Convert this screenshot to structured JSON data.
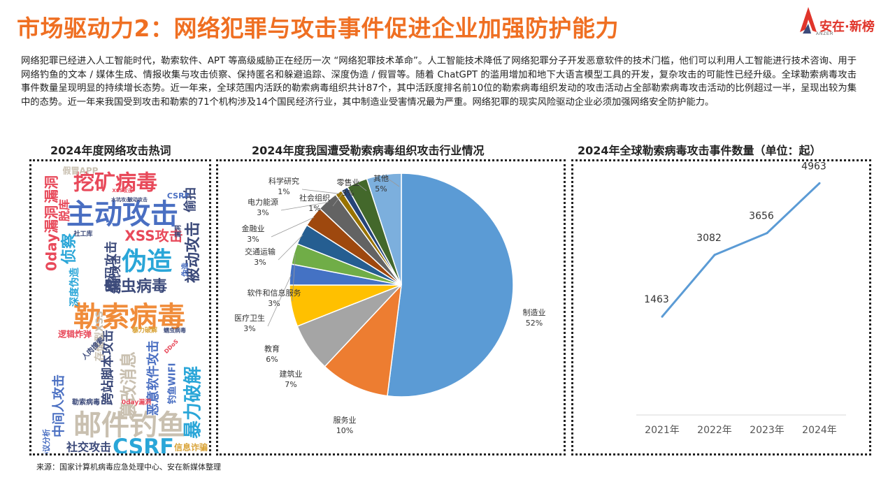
{
  "header": {
    "title": "市场驱动力2：网络犯罪与攻击事件促进企业加强防护能力",
    "logo_text": "安在·新榜",
    "logo_sub": "ANZER"
  },
  "intro": "网络犯罪已经进入人工智能时代，勒索软件、APT 等高级威胁正在经历一次 “网络犯罪技术革命”。人工智能技术降低了网络犯罪分子开发恶意软件的技术门槛，他们可以利用人工智能进行技术咨询、用于网络钓鱼的文本 / 媒体生成、情报收集与攻击侦察、保持匿名和躲避追踪、深度伪造 / 假冒等。随着 ChatGPT 的滥用增加和地下大语言模型工具的开发，复杂攻击的可能性已经升级。全球勒索病毒攻击事件数量呈现明显的持续增长态势。近一年来，全球范围内活跃的勒索病毒组织共计87个，其中活跃度排名前10位的勒索病毒组织发动的攻击活动占全部勒索病毒攻击活动的比例超过一半，呈现出较为集中的态势。近一年来我国受到攻击和勒索的71个机构涉及14个国民经济行业，其中制造业受害情况最为严重。网络犯罪的现实风险驱动企业必须加强网络安全防护能力。",
  "panels": {
    "wordcloud_title": "2024年度网络攻击热词",
    "pie_title": "2024年度我国遭受勒索病毒组织攻击行业情况",
    "line_title": "2024年全球勒索病毒攻击事件数量（单位：起）"
  },
  "wordcloud": [
    {
      "text": "挖矿病毒",
      "color": "#e8495a",
      "size": 30,
      "rot": 0
    },
    {
      "text": "主动攻击",
      "color": "#4a6fc2",
      "size": 40,
      "rot": 0
    },
    {
      "text": "XSS攻击",
      "color": "#e8495a",
      "size": 20,
      "rot": 0
    },
    {
      "text": "伪造",
      "color": "#2aa6d8",
      "size": 36,
      "rot": 0
    },
    {
      "text": "蠕虫病毒",
      "color": "#3c4a7a",
      "size": 22,
      "rot": 0
    },
    {
      "text": "勒索病毒",
      "color": "#f08c3a",
      "size": 40,
      "rot": 0
    },
    {
      "text": "邮件钓鱼",
      "color": "#c9c0b0",
      "size": 40,
      "rot": 0
    },
    {
      "text": "CSRF",
      "color": "#2aa6d8",
      "size": 30,
      "rot": 0
    },
    {
      "text": "社交攻击",
      "color": "#3c4a7a",
      "size": 16,
      "rot": 0
    },
    {
      "text": "信息诈骗",
      "color": "#d9a43a",
      "size": 12,
      "rot": 0
    },
    {
      "text": "暴力破解",
      "color": "#2aa6d8",
      "size": 26,
      "rot": -90
    },
    {
      "text": "被动攻击",
      "color": "#3c4a7a",
      "size": 22,
      "rot": -90
    },
    {
      "text": "偷拍",
      "color": "#3c4a7a",
      "size": 18,
      "rot": -90
    },
    {
      "text": "0day漏洞",
      "color": "#e8495a",
      "size": 20,
      "rot": -90
    },
    {
      "text": "中间人攻击",
      "color": "#4a6fc2",
      "size": 18,
      "rot": -90
    },
    {
      "text": "篡改消息",
      "color": "#c9c0b0",
      "size": 24,
      "rot": -90
    },
    {
      "text": "跨站脚本攻击",
      "color": "#3c4a7a",
      "size": 18,
      "rot": -90
    },
    {
      "text": "恶意软件攻击",
      "color": "#4a6fc2",
      "size": 18,
      "rot": -90
    },
    {
      "text": "密码攻击",
      "color": "#3c4a7a",
      "size": 18,
      "rot": -90
    },
    {
      "text": "侦察",
      "color": "#2aa6d8",
      "size": 22,
      "rot": -90
    },
    {
      "text": "水坑攻击",
      "color": "#3c4a7a",
      "size": 14,
      "rot": -90
    },
    {
      "text": "深度伪造",
      "color": "#2aa6d8",
      "size": 14,
      "rot": -90
    },
    {
      "text": "漏洞",
      "color": "#e8495a",
      "size": 20,
      "rot": -90
    },
    {
      "text": "脱库",
      "color": "#e8495a",
      "size": 16,
      "rot": -90
    },
    {
      "text": "存储型XSS",
      "color": "#c9c0b0",
      "size": 14,
      "rot": -90
    },
    {
      "text": "逻辑炸弹",
      "color": "#e8495a",
      "size": 12,
      "rot": 0
    },
    {
      "text": "假冒APP",
      "color": "#c9c0b0",
      "size": 12,
      "rot": 0
    },
    {
      "text": "钓鱼WIFI",
      "color": "#4a6fc2",
      "size": 13,
      "rot": -90
    },
    {
      "text": "协议分析",
      "color": "#4a6fc2",
      "size": 11,
      "rot": -90
    },
    {
      "text": "勒索病毒",
      "color": "#3c4a7a",
      "size": 10,
      "rot": 0
    },
    {
      "text": "0day漏洞",
      "color": "#e8495a",
      "size": 9,
      "rot": 0
    },
    {
      "text": "暴力破解",
      "color": "#d9a43a",
      "size": 9,
      "rot": 0
    },
    {
      "text": "蠕虫病毒",
      "color": "#3c4a7a",
      "size": 8,
      "rot": 0
    },
    {
      "text": "社工库",
      "color": "#3c4a7a",
      "size": 9,
      "rot": 0
    },
    {
      "text": "CSRF",
      "color": "#4a6fc2",
      "size": 11,
      "rot": 0
    },
    {
      "text": "伪造",
      "color": "#4a6fc2",
      "size": 10,
      "rot": -90
    },
    {
      "text": "XSS攻击",
      "color": "#e8495a",
      "size": 7,
      "rot": 0
    },
    {
      "text": "水坑攻击",
      "color": "#3c4a7a",
      "size": 7,
      "rot": 0
    },
    {
      "text": "漏洞",
      "color": "#3c4a7a",
      "size": 9,
      "rot": -90
    },
    {
      "text": "人肉搜索",
      "color": "#3c4a7a",
      "size": 10,
      "rot": -45
    },
    {
      "text": "被动攻击",
      "color": "#3c4a7a",
      "size": 7,
      "rot": 0
    },
    {
      "text": "DDoS",
      "color": "#e8495a",
      "size": 8,
      "rot": -45
    }
  ],
  "chart_data": [
    {
      "type": "pie",
      "title": "2024年度我国遭受勒索病毒组织攻击行业情况",
      "slices": [
        {
          "label": "制造业",
          "value": 52,
          "pct_label": "52%",
          "color": "#5b9bd5"
        },
        {
          "label": "服务业",
          "value": 10,
          "pct_label": "10%",
          "color": "#ed7d31"
        },
        {
          "label": "建筑业",
          "value": 7,
          "pct_label": "7%",
          "color": "#a5a5a5"
        },
        {
          "label": "教育",
          "value": 6,
          "pct_label": "6%",
          "color": "#ffc000"
        },
        {
          "label": "医疗卫生",
          "value": 3,
          "pct_label": "3%",
          "color": "#4472c4"
        },
        {
          "label": "软件和信息服务",
          "value": 3,
          "pct_label": "3%",
          "color": "#70ad47"
        },
        {
          "label": "交通运输",
          "value": 3,
          "pct_label": "3%",
          "color": "#255e91"
        },
        {
          "label": "金融业",
          "value": 3,
          "pct_label": "3%",
          "color": "#9e480e"
        },
        {
          "label": "电力能源",
          "value": 3,
          "pct_label": "3%",
          "color": "#636363"
        },
        {
          "label": "科学研究",
          "value": 1,
          "pct_label": "1%",
          "color": "#997300"
        },
        {
          "label": "社会组织",
          "value": 1,
          "pct_label": "1%",
          "color": "#264478"
        },
        {
          "label": "零售业",
          "value": 3,
          "pct_label": "3%",
          "color": "#43682b"
        },
        {
          "label": "其他",
          "value": 5,
          "pct_label": "5%",
          "color": "#7cafdd"
        }
      ]
    },
    {
      "type": "line",
      "title": "2024年全球勒索病毒攻击事件数量（单位：起）",
      "categories": [
        "2021年",
        "2022年",
        "2023年",
        "2024年"
      ],
      "values": [
        1463,
        3082,
        3656,
        4963
      ],
      "color": "#5b9bd5",
      "grid": false
    }
  ],
  "source": "来源：国家计算机病毒应急处理中心、安在新媒体整理"
}
